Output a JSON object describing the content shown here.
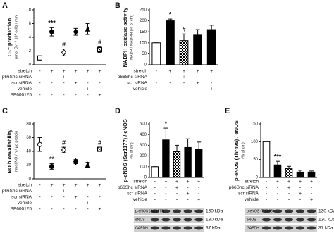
{
  "chart_data": [
    {
      "panel": "A",
      "type": "scatter",
      "ylabel": "O₂⁻ production",
      "ylabel2": "nmol O₂⁻ / 10⁶ cells / min",
      "values": [
        1.0,
        4.8,
        1.8,
        4.8,
        5.2,
        2.2
      ],
      "errors": [
        0.3,
        0.6,
        0.5,
        0.5,
        0.8,
        0.4
      ],
      "markers": [
        "open-square",
        "filled-circle",
        "open-diamond",
        "filled-diamond",
        "filled-triangle",
        "open-square-x"
      ],
      "ylim": [
        0,
        8
      ],
      "yticks": [
        0,
        2,
        4,
        6,
        8
      ],
      "annotations": [
        {
          "index": 1,
          "text": "***"
        },
        {
          "index": 2,
          "text": "#"
        },
        {
          "index": 5,
          "text": "#"
        }
      ],
      "rows": [
        {
          "label": "stretch",
          "signs": [
            "-",
            "+",
            "+",
            "+",
            "+",
            "+"
          ]
        },
        {
          "label": "p66Shc siRNA",
          "signs": [
            "-",
            "-",
            "+",
            "-",
            "-",
            "-"
          ]
        },
        {
          "label": "scr siRNA",
          "signs": [
            "-",
            "-",
            "-",
            "+",
            "-",
            "-"
          ]
        },
        {
          "label": "vehicle",
          "signs": [
            "-",
            "-",
            "-",
            "-",
            "+",
            "-"
          ]
        },
        {
          "label": "SP600125",
          "signs": [
            "-",
            "-",
            "-",
            "-",
            "-",
            "+"
          ]
        }
      ]
    },
    {
      "panel": "B",
      "type": "bar",
      "ylabel": "NADPH oxidase activity",
      "ylabel2": "NADP / NADPH (% of ctrl)",
      "values": [
        100,
        200,
        110,
        135,
        160
      ],
      "errors": [
        0,
        8,
        30,
        25,
        20
      ],
      "fills": [
        "white",
        "black",
        "checker",
        "black",
        "black"
      ],
      "ylim": [
        0,
        250
      ],
      "yticks": [
        0,
        50,
        100,
        150,
        200,
        250
      ],
      "annotations": [
        {
          "index": 1,
          "text": "*"
        },
        {
          "index": 2,
          "text": "#"
        }
      ],
      "rows": [
        {
          "label": "stretch",
          "signs": [
            "-",
            "+",
            "+",
            "+",
            "+"
          ]
        },
        {
          "label": "p66Shc siRNA",
          "signs": [
            "-",
            "-",
            "+",
            "-",
            "-"
          ]
        },
        {
          "label": "scr siRNA",
          "signs": [
            "-",
            "-",
            "-",
            "+",
            "-"
          ]
        },
        {
          "label": "vehicle",
          "signs": [
            "-",
            "-",
            "-",
            "-",
            "+"
          ]
        }
      ]
    },
    {
      "panel": "C",
      "type": "scatter",
      "ylabel": "NO bioavailability",
      "ylabel2": "nmol NO / h / µg protein",
      "values": [
        50,
        18,
        42,
        25,
        20,
        43
      ],
      "errors": [
        10,
        4,
        4,
        3,
        4,
        3
      ],
      "markers": [
        "open-circle",
        "filled-circle",
        "open-diamond",
        "filled-diamond",
        "filled-triangle",
        "open-square-x"
      ],
      "ylim": [
        0,
        80
      ],
      "yticks": [
        0,
        20,
        40,
        60,
        80
      ],
      "annotations": [
        {
          "index": 1,
          "text": "**"
        },
        {
          "index": 2,
          "text": "#"
        },
        {
          "index": 5,
          "text": "#"
        }
      ],
      "rows": [
        {
          "label": "stretch",
          "signs": [
            "-",
            "+",
            "+",
            "+",
            "+",
            "+"
          ]
        },
        {
          "label": "p66Shc siRNA",
          "signs": [
            "-",
            "-",
            "+",
            "-",
            "-",
            "-"
          ]
        },
        {
          "label": "scr siRNA",
          "signs": [
            "-",
            "-",
            "-",
            "+",
            "-",
            "-"
          ]
        },
        {
          "label": "vehicle",
          "signs": [
            "-",
            "-",
            "-",
            "-",
            "+",
            "-"
          ]
        },
        {
          "label": "SP600125",
          "signs": [
            "-",
            "-",
            "-",
            "-",
            "-",
            "+"
          ]
        }
      ]
    },
    {
      "panel": "D",
      "type": "bar",
      "ylabel": "p-eNOS (Ser1177) / eNOS",
      "ylabel2": "(% of ctrl)",
      "values": [
        100,
        350,
        240,
        280,
        260
      ],
      "errors": [
        0,
        110,
        60,
        80,
        70
      ],
      "fills": [
        "white",
        "black",
        "checker",
        "black",
        "black"
      ],
      "ylim": [
        0,
        500
      ],
      "yticks": [
        0,
        100,
        200,
        300,
        400,
        500
      ],
      "annotations": [
        {
          "index": 1,
          "text": "*"
        }
      ],
      "rows": [
        {
          "label": "stretch",
          "signs": [
            "-",
            "+",
            "+",
            "+",
            "+"
          ]
        },
        {
          "label": "p66Shc siRNA",
          "signs": [
            "-",
            "-",
            "+",
            "-",
            "-"
          ]
        },
        {
          "label": "scr siRNA",
          "signs": [
            "-",
            "-",
            "-",
            "+",
            "-"
          ]
        },
        {
          "label": "vehicle",
          "signs": [
            "-",
            "-",
            "-",
            "-",
            "+"
          ]
        }
      ],
      "blots": [
        {
          "label": "p-eNOS (Ser1177)",
          "kda": "130 kDa"
        },
        {
          "label": "eNOS",
          "kda": "130 kDa"
        },
        {
          "label": "GAPDH",
          "kda": "37 kDa"
        }
      ]
    },
    {
      "panel": "E",
      "type": "bar",
      "ylabel": "p-eNOS (Thr495) / eNOS",
      "ylabel2": "(% of ctrl)",
      "values": [
        100,
        35,
        25,
        15,
        15
      ],
      "errors": [
        0,
        10,
        6,
        5,
        3
      ],
      "fills": [
        "white",
        "black",
        "checker",
        "black",
        "black"
      ],
      "ylim": [
        0,
        150
      ],
      "yticks": [
        0,
        50,
        100,
        150
      ],
      "annotations": [
        {
          "index": 1,
          "text": "***"
        }
      ],
      "rows": [
        {
          "label": "stretch",
          "signs": [
            "-",
            "+",
            "+",
            "+",
            "+"
          ]
        },
        {
          "label": "p66Shc siRNA",
          "signs": [
            "-",
            "-",
            "+",
            "-",
            "-"
          ]
        },
        {
          "label": "scr siRNA",
          "signs": [
            "-",
            "-",
            "-",
            "+",
            "-"
          ]
        },
        {
          "label": "vehicle",
          "signs": [
            "-",
            "-",
            "-",
            "-",
            "+"
          ]
        }
      ],
      "blots": [
        {
          "label": "p-eNOS (Thr495)",
          "kda": "130 kDa"
        },
        {
          "label": "eNOS",
          "kda": "130 kDa"
        },
        {
          "label": "GAPDH",
          "kda": "37 kDa"
        }
      ]
    }
  ]
}
